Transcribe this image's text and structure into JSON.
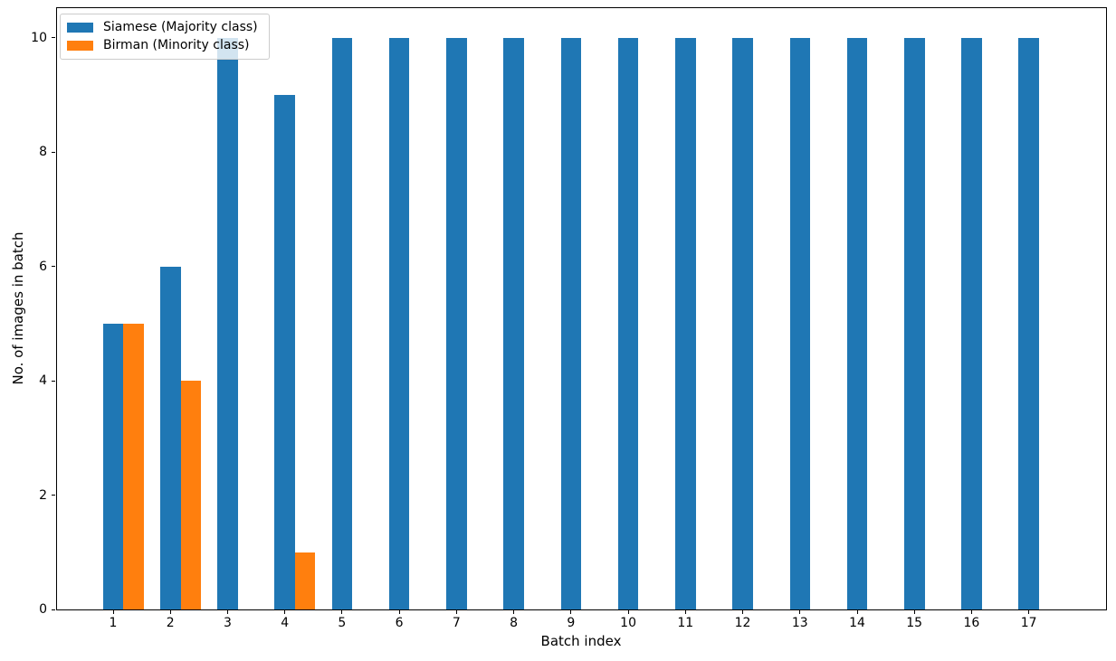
{
  "chart_data": {
    "type": "bar",
    "title": "",
    "xlabel": "Batch index",
    "ylabel": "No. of images in batch",
    "categories": [
      "1",
      "2",
      "3",
      "4",
      "5",
      "6",
      "7",
      "8",
      "9",
      "10",
      "11",
      "12",
      "13",
      "14",
      "15",
      "16",
      "17"
    ],
    "series": [
      {
        "name": "Siamese (Majority class)",
        "color": "#1f77b4",
        "values": [
          5,
          6,
          10,
          9,
          10,
          10,
          10,
          10,
          10,
          10,
          10,
          10,
          10,
          10,
          10,
          10,
          10
        ]
      },
      {
        "name": "Birman (Minority class)",
        "color": "#ff7f0e",
        "values": [
          5,
          4,
          0,
          1,
          0,
          0,
          0,
          0,
          0,
          0,
          0,
          0,
          0,
          0,
          0,
          0,
          0
        ]
      }
    ],
    "yticks": [
      0,
      2,
      4,
      6,
      8,
      10
    ],
    "ylim": [
      0,
      10.53
    ],
    "grid": false,
    "legend_position": "upper left",
    "bar_layout": "grouped"
  },
  "colors": {
    "majority": "#1f77b4",
    "minority": "#ff7f0e",
    "spine": "#000000",
    "background": "#ffffff"
  }
}
